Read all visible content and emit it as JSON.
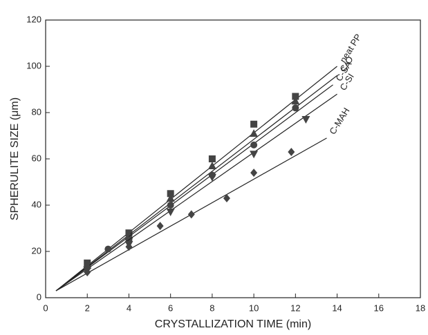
{
  "chart_data": {
    "type": "scatter",
    "x_label": "CRYSTALLIZATION TIME (min)",
    "y_label": "SPHERULITE SIZE (μm)",
    "xlim": [
      0,
      18
    ],
    "xticks": [
      0,
      2,
      4,
      6,
      8,
      10,
      12,
      14,
      16,
      18
    ],
    "ylim": [
      0,
      120
    ],
    "yticks": [
      0,
      20,
      40,
      60,
      80,
      100,
      120
    ],
    "series": [
      {
        "name": "neat PP",
        "marker": "square",
        "color": "#444444",
        "x": [
          2,
          4,
          6,
          8,
          10,
          12
        ],
        "values": [
          15,
          28,
          45,
          60,
          75,
          87
        ],
        "line_x": [
          0.5,
          14
        ],
        "line_y": [
          3,
          100
        ]
      },
      {
        "name": "C-O",
        "marker": "triangle-up",
        "color": "#444444",
        "x": [
          2,
          4,
          6,
          8,
          10,
          12
        ],
        "values": [
          14,
          27,
          43,
          57,
          71,
          85
        ],
        "line_x": [
          0.5,
          14
        ],
        "line_y": [
          3,
          96
        ]
      },
      {
        "name": "C-SA",
        "marker": "circle",
        "color": "#444444",
        "x": [
          2,
          3,
          4,
          6,
          8,
          10,
          12
        ],
        "values": [
          13,
          21,
          25,
          40,
          53,
          66,
          82
        ],
        "line_x": [
          0.5,
          13.8
        ],
        "line_y": [
          3,
          92
        ]
      },
      {
        "name": "C-SI",
        "marker": "triangle-down",
        "color": "#444444",
        "x": [
          2,
          4,
          6,
          8,
          10,
          12.5
        ],
        "values": [
          12,
          23,
          37,
          52,
          62,
          77
        ],
        "line_x": [
          0.5,
          14
        ],
        "line_y": [
          3,
          88
        ]
      },
      {
        "name": "C-MAH",
        "marker": "diamond",
        "color": "#444444",
        "x": [
          2,
          4,
          5.5,
          7,
          8.7,
          10,
          11.8
        ],
        "values": [
          11,
          22,
          31,
          36,
          43,
          54,
          63
        ],
        "line_x": [
          0.5,
          13.5
        ],
        "line_y": [
          3,
          69
        ]
      }
    ]
  }
}
